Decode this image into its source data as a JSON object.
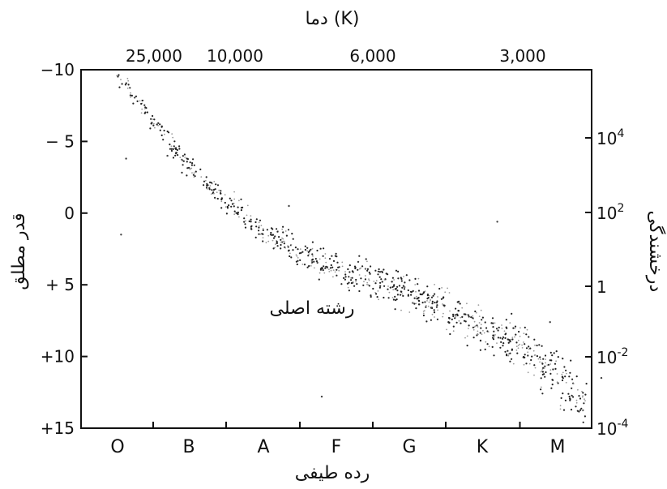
{
  "chart_data": {
    "type": "scatter",
    "title": "",
    "top_axis": {
      "label": "دما (K)",
      "ticks": [
        "25,000",
        "10,000",
        "6,000",
        "3,000"
      ]
    },
    "left_axis": {
      "label": "قدر مطلق",
      "range": [
        -10,
        15
      ],
      "inverted": true,
      "ticks": [
        -10,
        -5,
        0,
        5,
        10,
        15
      ],
      "tick_labels": [
        "−10",
        "− 5",
        "0",
        "+ 5",
        "+10",
        "+15"
      ]
    },
    "right_axis": {
      "label": "درخشندگی",
      "scale": "log",
      "tick_labels": [
        {
          "base": "10",
          "exp": "4"
        },
        {
          "base": "10",
          "exp": "2"
        },
        {
          "base": "1",
          "exp": ""
        },
        {
          "base": "10",
          "exp": "-2"
        },
        {
          "base": "10",
          "exp": "-4"
        }
      ]
    },
    "bottom_axis": {
      "label": "رده طیفی",
      "categories": [
        "O",
        "B",
        "A",
        "F",
        "G",
        "K",
        "M"
      ]
    },
    "annotation": "رشته اصلی",
    "main_sequence_track": [
      {
        "class": 0.0,
        "mag": -9.6
      },
      {
        "class": 0.5,
        "mag": -6.5
      },
      {
        "class": 1.0,
        "mag": -3.2
      },
      {
        "class": 1.5,
        "mag": -0.8
      },
      {
        "class": 2.0,
        "mag": 1.2
      },
      {
        "class": 2.5,
        "mag": 2.8
      },
      {
        "class": 3.0,
        "mag": 4.0
      },
      {
        "class": 3.5,
        "mag": 4.6
      },
      {
        "class": 4.0,
        "mag": 5.6
      },
      {
        "class": 4.5,
        "mag": 6.6
      },
      {
        "class": 5.0,
        "mag": 8.0
      },
      {
        "class": 5.5,
        "mag": 9.2
      },
      {
        "class": 6.0,
        "mag": 11.3
      },
      {
        "class": 6.4,
        "mag": 13.8
      }
    ],
    "grid": false,
    "legend": "none"
  }
}
